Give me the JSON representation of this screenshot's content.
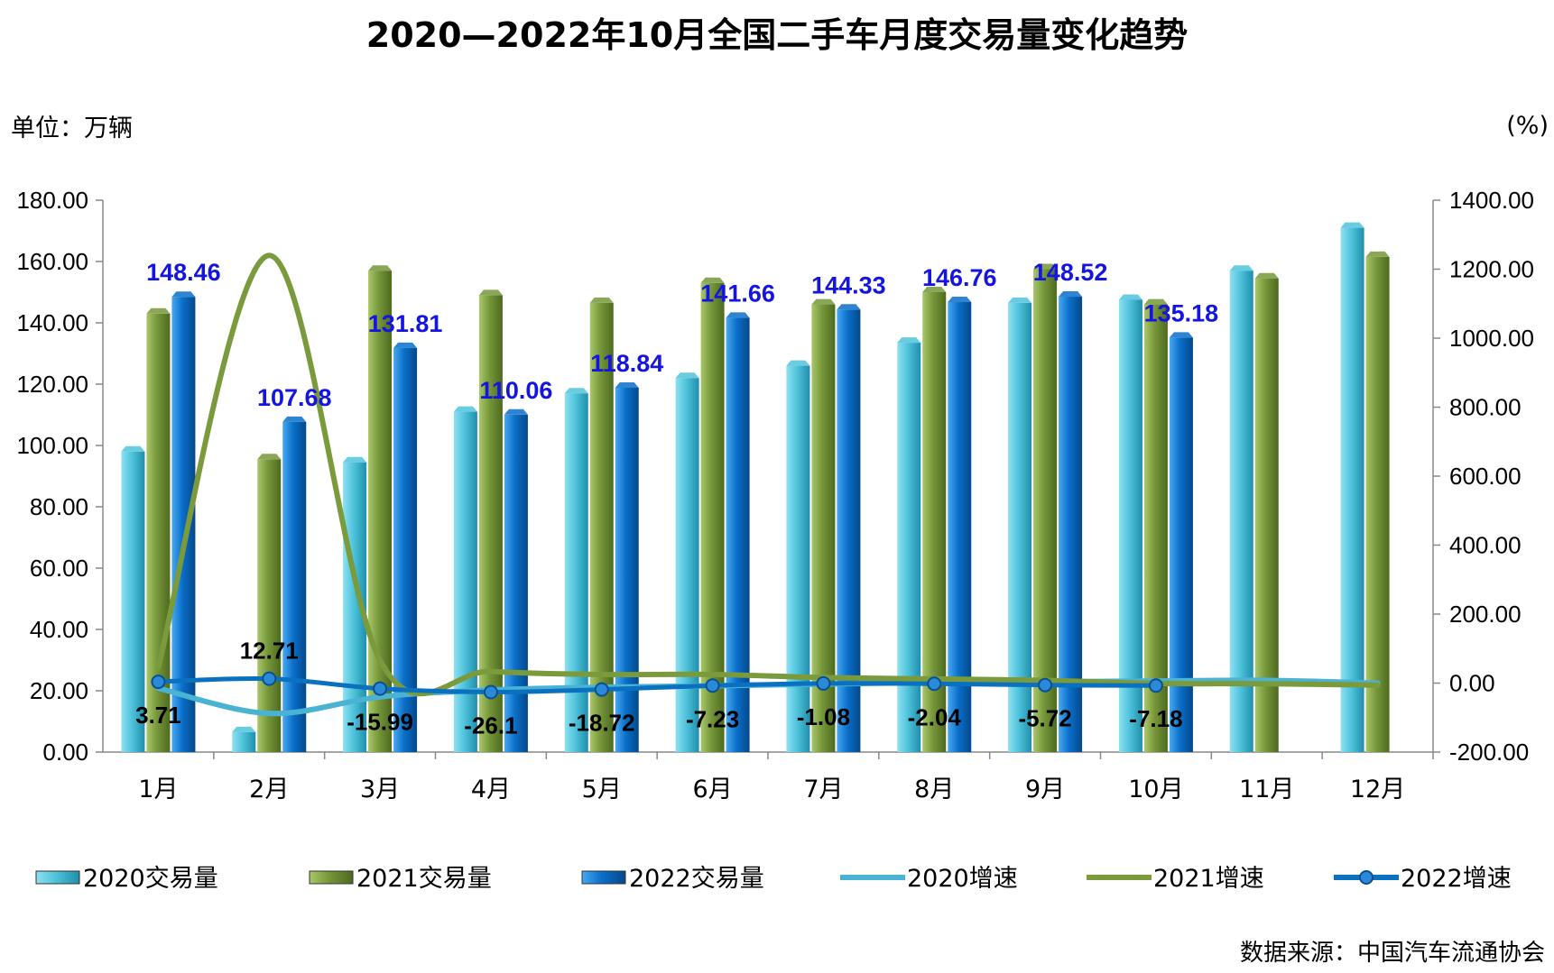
{
  "title": "2020—2022年10月全国二手车月度交易量变化趋势",
  "unit_left": "单位：万辆",
  "unit_right": "(%)",
  "source": "数据来源：中国汽车流通协会",
  "colors": {
    "v2020": "#4fc3dc",
    "v2021": "#76963a",
    "v2022": "#0a6fc9",
    "g2020": "#4ab3d4",
    "g2021": "#7a9a3c",
    "g2022": "#0a70c0",
    "label2022": "#1515e0"
  },
  "chart_data": {
    "type": "bar",
    "categories": [
      "1月",
      "2月",
      "3月",
      "4月",
      "5月",
      "6月",
      "7月",
      "8月",
      "9月",
      "10月",
      "11月",
      "12月"
    ],
    "y_left": {
      "min": 0,
      "max": 180,
      "step": 20,
      "ticks": [
        "0.00",
        "20.00",
        "40.00",
        "60.00",
        "80.00",
        "100.00",
        "120.00",
        "140.00",
        "160.00",
        "180.00"
      ]
    },
    "y_right": {
      "min": -200,
      "max": 1400,
      "step": 200,
      "ticks": [
        "-200.00",
        "0.00",
        "200.00",
        "400.00",
        "600.00",
        "800.00",
        "1000.00",
        "1200.00",
        "1400.00"
      ]
    },
    "bar_series": [
      {
        "name": "2020交易量",
        "values": [
          98,
          6.5,
          94.5,
          111,
          117,
          122,
          126,
          133.5,
          146.5,
          147.5,
          157,
          171
        ]
      },
      {
        "name": "2021交易量",
        "values": [
          143,
          95.5,
          157,
          149,
          146.5,
          153,
          146,
          150,
          157.5,
          146,
          154.5,
          161.5
        ]
      },
      {
        "name": "2022交易量",
        "values": [
          148.46,
          107.68,
          131.81,
          110.06,
          118.84,
          141.66,
          144.33,
          146.76,
          148.52,
          135.18,
          null,
          null
        ],
        "labels": [
          "148.46",
          "107.68",
          "131.81",
          "110.06",
          "118.84",
          "141.66",
          "144.33",
          "146.76",
          "148.52",
          "135.18",
          "",
          ""
        ]
      }
    ],
    "line_series": [
      {
        "name": "2020增速",
        "values": [
          -15,
          -88,
          -40,
          -20,
          -12,
          -8,
          -3,
          2,
          4,
          6,
          8,
          0
        ]
      },
      {
        "name": "2021增速",
        "values": [
          46,
          1240,
          66,
          34,
          25,
          25,
          16,
          12,
          8,
          -1,
          -2,
          -6
        ]
      },
      {
        "name": "2022增速",
        "values": [
          3.71,
          12.71,
          -15.99,
          -26.1,
          -18.72,
          -7.23,
          -1.08,
          -2.04,
          -5.72,
          -7.18,
          null,
          null
        ],
        "labels": [
          "3.71",
          "12.71",
          "-15.99",
          "-26.1",
          "-18.72",
          "-7.23",
          "-1.08",
          "-2.04",
          "-5.72",
          "-7.18",
          "",
          ""
        ]
      }
    ],
    "legend": [
      "2020交易量",
      "2021交易量",
      "2022交易量",
      "2020增速",
      "2021增速",
      "2022增速"
    ],
    "legend_position": "bottom",
    "grid": false
  }
}
